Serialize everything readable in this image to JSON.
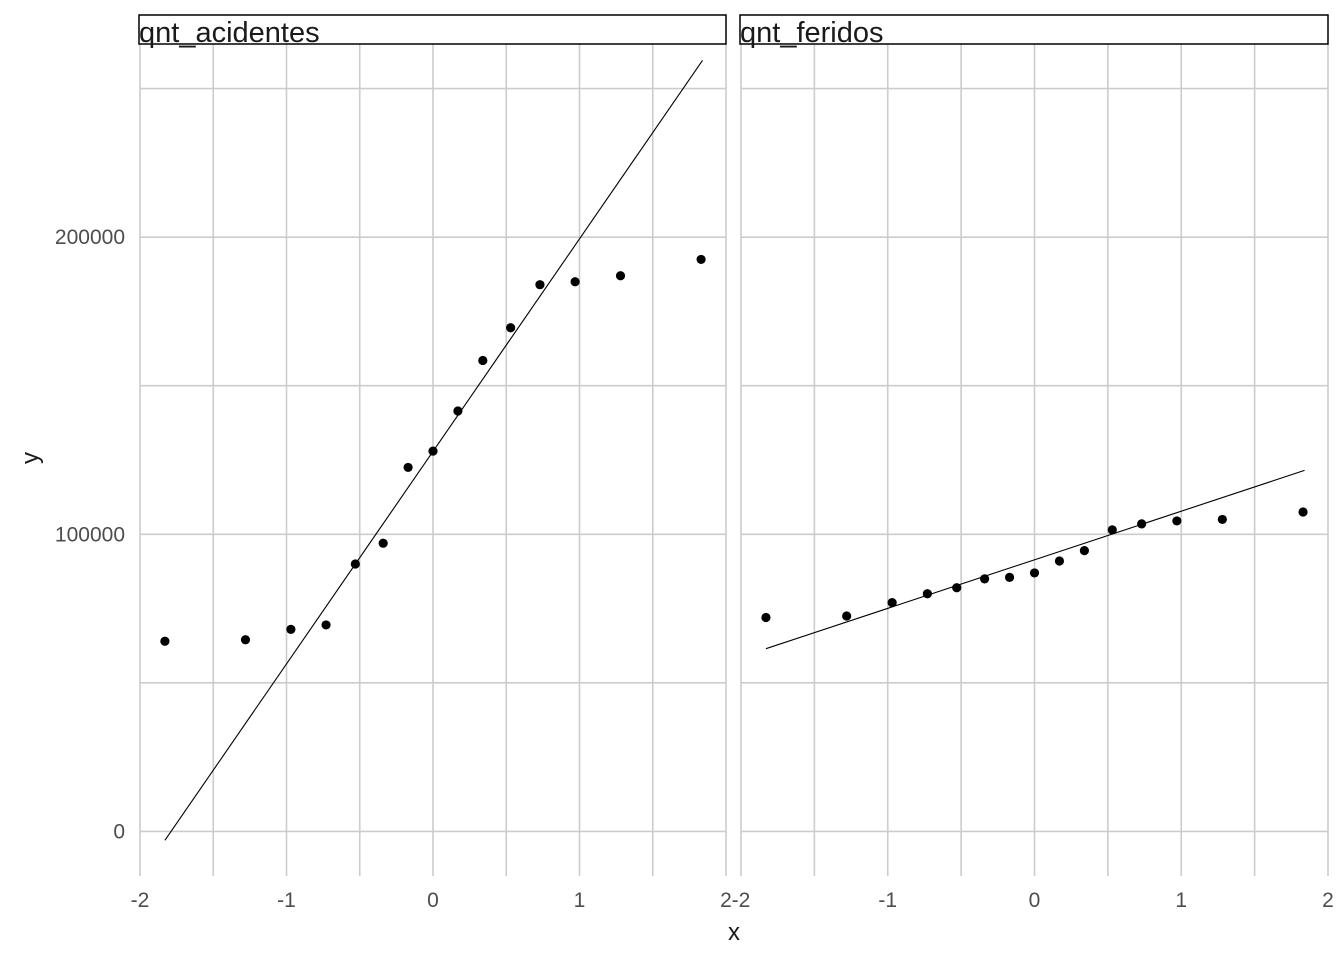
{
  "chart_data": {
    "type": "scatter",
    "xlabel": "x",
    "ylabel": "y",
    "xlim": [
      -2,
      2
    ],
    "ylim": [
      -15000,
      265000
    ],
    "x_ticks": [
      -2,
      -1,
      0,
      1,
      2
    ],
    "x_tick_labels": [
      "-2",
      "-1",
      "0",
      "1",
      "2"
    ],
    "y_ticks": [
      0,
      100000,
      200000
    ],
    "y_tick_labels": [
      "0",
      "100000",
      "200000"
    ],
    "grid": true,
    "panels": [
      {
        "strip_label": "qnt_acidentes",
        "points": {
          "x": [
            -1.83,
            -1.28,
            -0.97,
            -0.73,
            -0.53,
            -0.34,
            -0.17,
            0.0,
            0.17,
            0.34,
            0.53,
            0.73,
            0.97,
            1.28,
            1.83
          ],
          "y": [
            64000,
            64500,
            68000,
            69500,
            90000,
            97000,
            122500,
            128000,
            141500,
            158500,
            169500,
            184000,
            185000,
            187000,
            192500
          ]
        },
        "reference_line": {
          "x": [
            -1.83,
            1.84
          ],
          "y": [
            -3000,
            259500
          ]
        }
      },
      {
        "strip_label": "qnt_feridos",
        "points": {
          "x": [
            -1.83,
            -1.28,
            -0.97,
            -0.73,
            -0.53,
            -0.34,
            -0.17,
            0.0,
            0.17,
            0.34,
            0.53,
            0.73,
            0.97,
            1.28,
            1.83
          ],
          "y": [
            72000,
            72500,
            77000,
            80000,
            82000,
            85000,
            85500,
            87000,
            91000,
            94500,
            101500,
            103500,
            104500,
            105000,
            107500
          ]
        },
        "reference_line": {
          "x": [
            -1.83,
            1.84
          ],
          "y": [
            61500,
            121500
          ]
        }
      }
    ]
  }
}
